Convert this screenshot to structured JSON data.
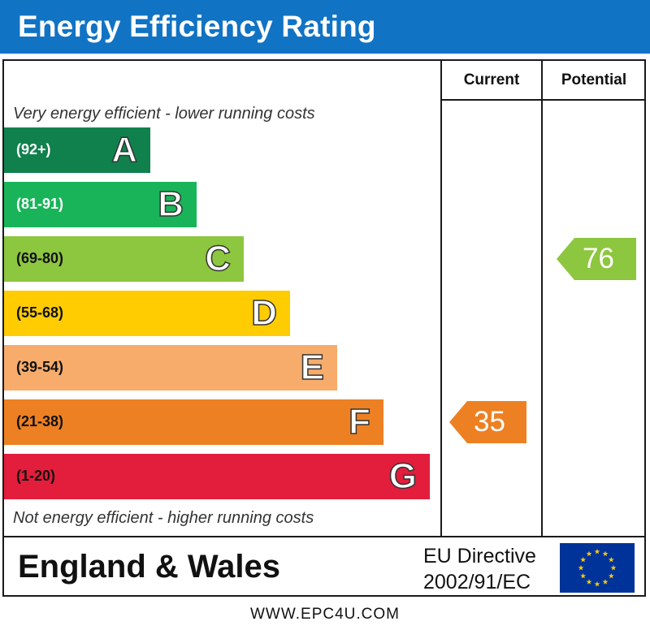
{
  "title": "Energy Efficiency Rating",
  "columns": {
    "current": "Current",
    "potential": "Potential"
  },
  "captions": {
    "top": "Very energy efficient - lower running costs",
    "bottom": "Not energy efficient - higher running costs"
  },
  "footer": {
    "region": "England & Wales",
    "directive_line1": "EU Directive",
    "directive_line2": "2002/91/EC",
    "url": "WWW.EPC4U.COM"
  },
  "chart_data": {
    "type": "bar",
    "categories": [
      "A",
      "B",
      "C",
      "D",
      "E",
      "F",
      "G"
    ],
    "ranges": [
      "(92+)",
      "(81-91)",
      "(69-80)",
      "(55-68)",
      "(39-54)",
      "(21-38)",
      "(1-20)"
    ],
    "colors": [
      "#10814d",
      "#19b459",
      "#8dc63f",
      "#ffcc02",
      "#f7ac6b",
      "#ed8023",
      "#e31d3c"
    ],
    "current": {
      "value": 35,
      "band": "F",
      "color": "#ed8023"
    },
    "potential": {
      "value": 76,
      "band": "C",
      "color": "#8dc63f"
    }
  }
}
